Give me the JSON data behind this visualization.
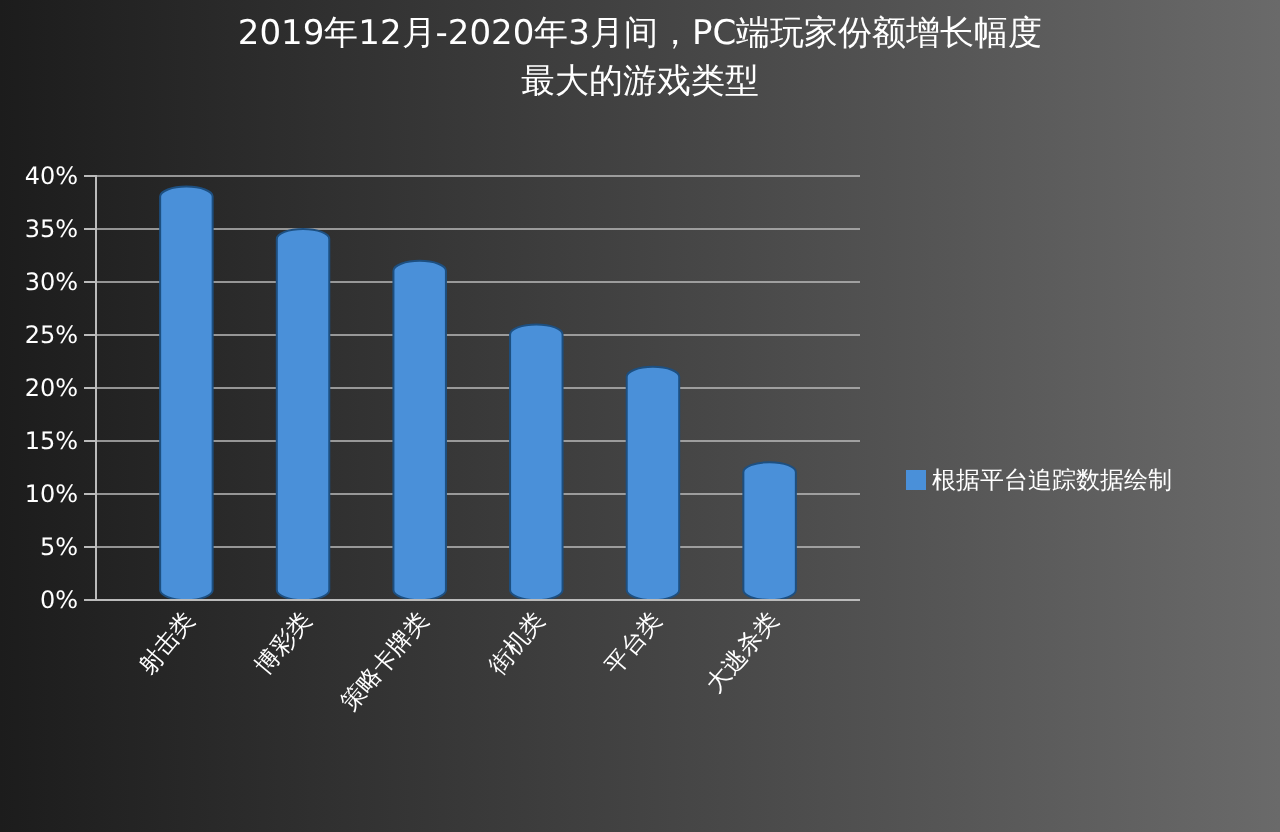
{
  "chart_data": {
    "type": "bar",
    "title": "2019年12月-2020年3月间，PC端玩家份额增长幅度最大的游戏类型",
    "categories": [
      "射击类",
      "博彩类",
      "策略卡牌类",
      "街机类",
      "平台类",
      "大逃杀类"
    ],
    "series": [
      {
        "name": "根据平台追踪数据绘制",
        "color": "#4a90d9",
        "values": [
          39,
          35,
          32,
          26,
          22,
          13
        ]
      }
    ],
    "ylim": [
      0,
      40
    ],
    "yticks": [
      {
        "value": 0,
        "label": "0%"
      },
      {
        "value": 5,
        "label": "5%"
      },
      {
        "value": 10,
        "label": "10%"
      },
      {
        "value": 15,
        "label": "15%"
      },
      {
        "value": 20,
        "label": "20%"
      },
      {
        "value": 25,
        "label": "25%"
      },
      {
        "value": 30,
        "label": "30%"
      },
      {
        "value": 35,
        "label": "35%"
      },
      {
        "value": 40,
        "label": "40%"
      }
    ],
    "grid": "y",
    "legend": "right"
  }
}
